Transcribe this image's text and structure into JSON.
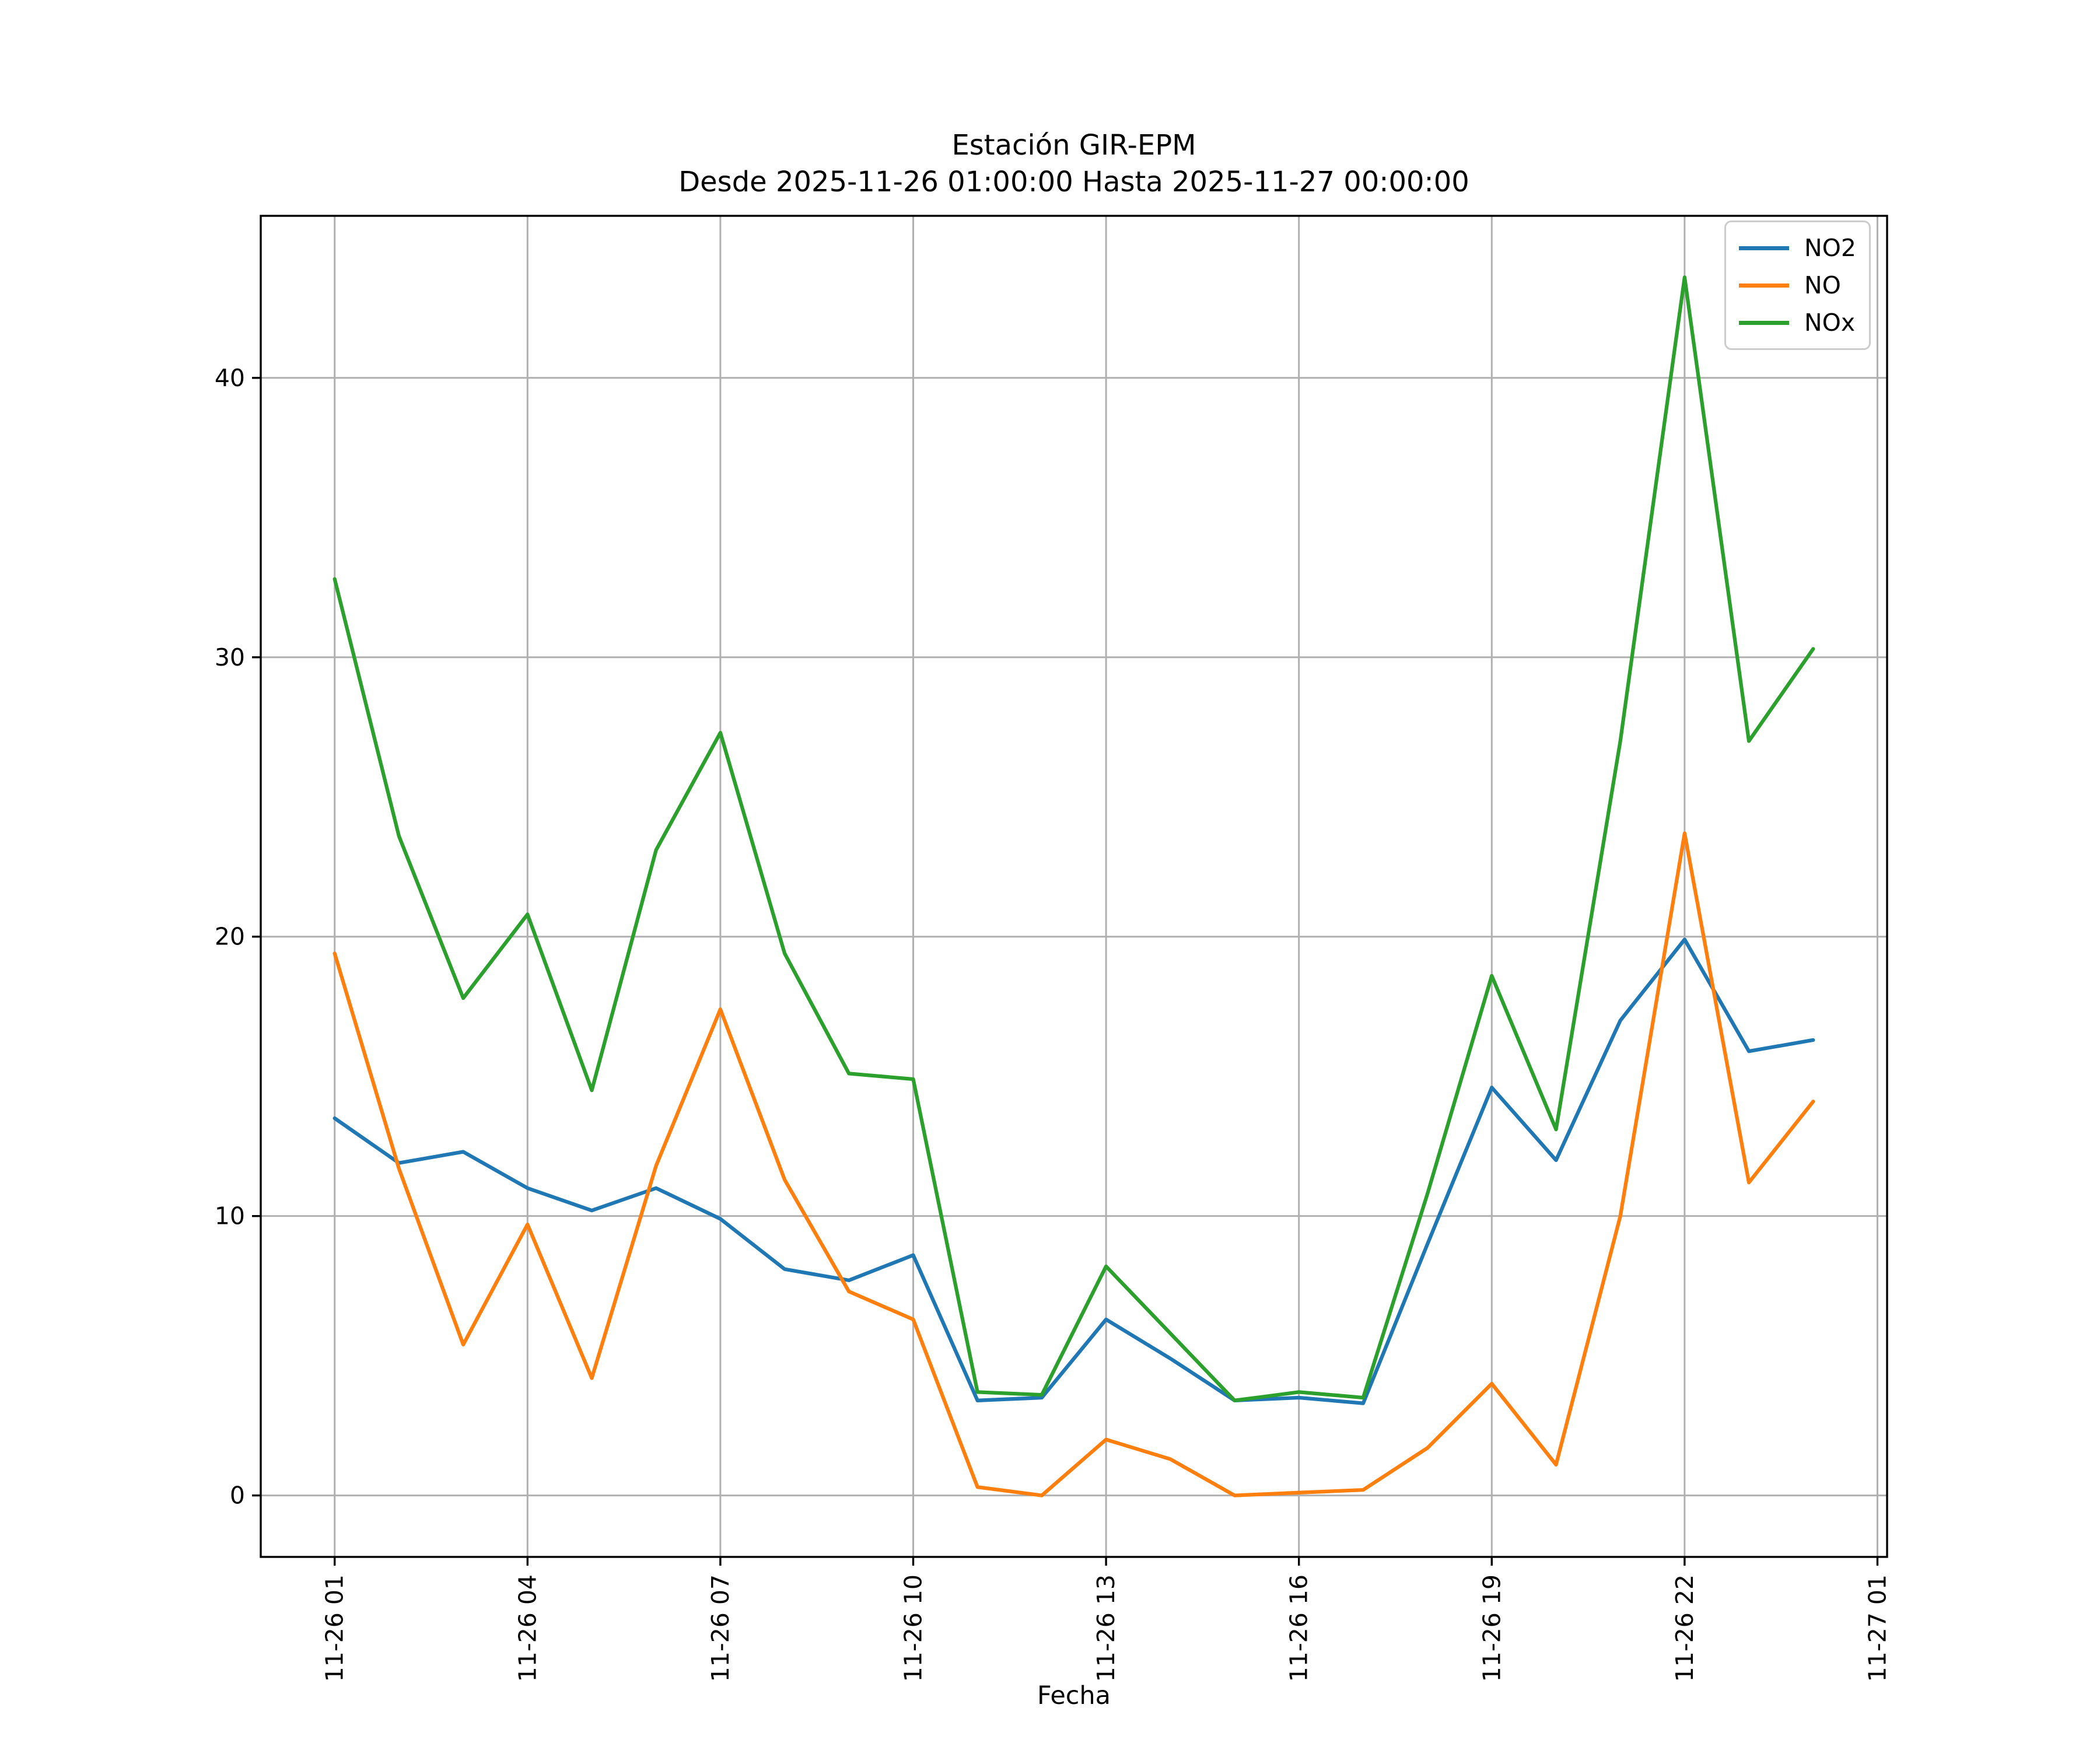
{
  "figure": {
    "title_line1": "Estación GIR-EPM",
    "title_line2": "Desde 2025-11-26 01:00:00 Hasta 2025-11-27 00:00:00",
    "xlabel": "Fecha"
  },
  "chart_data": {
    "type": "line",
    "title": "Estación GIR-EPM",
    "subtitle": "Desde 2025-11-26 01:00:00 Hasta 2025-11-27 00:00:00",
    "xlabel": "Fecha",
    "ylabel": "",
    "grid": true,
    "grid_color": "#b0b0b0",
    "legend_position": "upper right",
    "xlim": [
      -0.15,
      25.15
    ],
    "ylim": [
      -2.2,
      45.8
    ],
    "x_hours": [
      1,
      2,
      3,
      4,
      5,
      6,
      7,
      8,
      9,
      10,
      11,
      12,
      13,
      14,
      15,
      16,
      17,
      18,
      19,
      20,
      21,
      22,
      23,
      24
    ],
    "x_ticks": {
      "hours": [
        1,
        4,
        7,
        10,
        13,
        16,
        19,
        22,
        25
      ],
      "labels": [
        "11-26 01",
        "11-26 04",
        "11-26 07",
        "11-26 10",
        "11-26 13",
        "11-26 16",
        "11-26 19",
        "11-26 22",
        "11-27 01"
      ]
    },
    "y_ticks": [
      0,
      10,
      20,
      30,
      40
    ],
    "series": [
      {
        "name": "NO2",
        "color": "#1f77b4",
        "values": [
          13.5,
          11.9,
          12.3,
          11.0,
          10.2,
          11.0,
          9.9,
          8.1,
          7.7,
          8.6,
          3.4,
          3.5,
          6.3,
          4.9,
          3.4,
          3.5,
          3.3,
          9.0,
          14.6,
          12.0,
          17.0,
          19.9,
          15.9,
          16.3
        ]
      },
      {
        "name": "NO",
        "color": "#ff7f0e",
        "values": [
          19.4,
          11.7,
          5.4,
          9.7,
          4.2,
          11.8,
          17.4,
          11.3,
          7.3,
          6.3,
          0.3,
          0.0,
          2.0,
          1.3,
          0.0,
          0.1,
          0.2,
          1.7,
          4.0,
          1.1,
          10.0,
          23.7,
          11.2,
          14.1
        ]
      },
      {
        "name": "NOx",
        "color": "#2ca02c",
        "values": [
          32.8,
          23.6,
          17.8,
          20.8,
          14.5,
          23.1,
          27.3,
          19.4,
          15.1,
          14.9,
          3.7,
          3.6,
          8.2,
          5.8,
          3.4,
          3.7,
          3.5,
          10.8,
          18.6,
          13.1,
          27.0,
          43.6,
          27.0,
          30.3
        ]
      }
    ]
  }
}
